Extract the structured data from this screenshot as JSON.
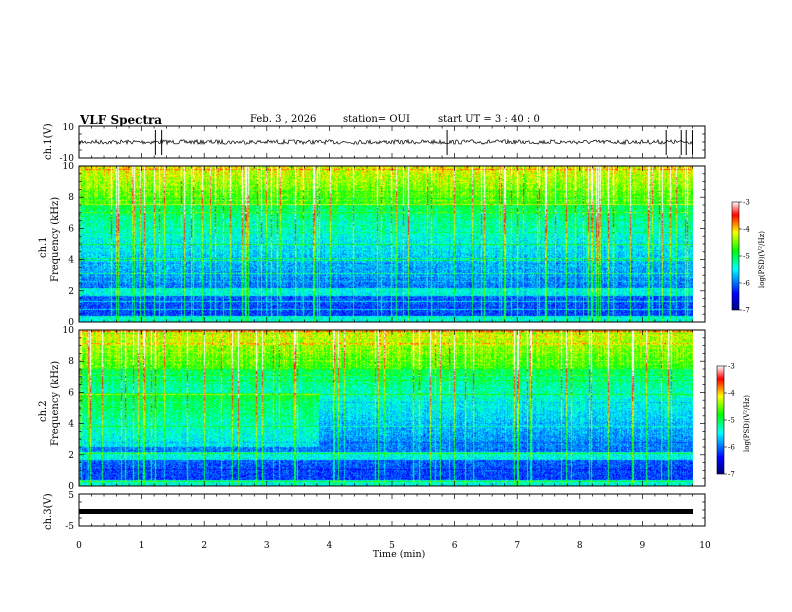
{
  "header": {
    "title": "VLF Spectra",
    "date": "Feb. 3  , 2026",
    "station": "station= OUI",
    "start_time": "start  UT  =   3  : 40 : 0"
  },
  "panels": {
    "ch1_waveform": {
      "ylabel": "ch.1(V)",
      "ticks": [
        "10",
        "-10"
      ]
    },
    "ch1_spectrogram": {
      "ylabel_line1": "ch.1",
      "ylabel_line2": "Frequency  (kHz)"
    },
    "ch2_spectrogram": {
      "ylabel_line1": "ch.2",
      "ylabel_line2": "Frequency  (kHz)"
    },
    "ch3_waveform": {
      "ylabel": "ch.3(V)",
      "ticks": [
        "5",
        "-5"
      ]
    }
  },
  "colorbar": {
    "label": "log(PSD)(V²/Hz)",
    "ticks": [
      "-3",
      "-4",
      "-5",
      "-6",
      "-7"
    ],
    "colors": [
      "#000080",
      "#0000ff",
      "#00ffff",
      "#00ff00",
      "#ffff00",
      "#ff0000",
      "#ffffff"
    ]
  },
  "chart_data": [
    {
      "type": "line",
      "title": "ch.1 waveform",
      "ylabel": "ch.1(V)",
      "xlim": [
        0,
        10
      ],
      "ylim": [
        -10,
        10
      ],
      "baseline": 0,
      "spikes_min": [
        1.22,
        1.32,
        5.88,
        9.38,
        9.62,
        9.7,
        9.8
      ]
    },
    {
      "type": "heatmap",
      "title": "ch.1 spectrogram",
      "ylabel": "Frequency (kHz)",
      "xlim": [
        0,
        10
      ],
      "ylim": [
        0,
        10
      ],
      "zlim": [
        -7,
        -3
      ],
      "x_ticks": [
        "0",
        "1",
        "2",
        "3",
        "4",
        "5",
        "6",
        "7",
        "8",
        "9",
        "10"
      ],
      "y_ticks": [
        "0",
        "2",
        "4",
        "6",
        "8",
        "10"
      ]
    },
    {
      "type": "heatmap",
      "title": "ch.2 spectrogram",
      "ylabel": "Frequency (kHz)",
      "xlim": [
        0,
        10
      ],
      "ylim": [
        0,
        10
      ],
      "zlim": [
        -7,
        -3
      ],
      "x_ticks": [
        "0",
        "1",
        "2",
        "3",
        "4",
        "5",
        "6",
        "7",
        "8",
        "9",
        "10"
      ],
      "y_ticks": [
        "0",
        "2",
        "4",
        "6",
        "8",
        "10"
      ]
    },
    {
      "type": "line",
      "title": "ch.3 waveform",
      "ylabel": "ch.3(V)",
      "xlabel": "Time  (min)",
      "xlim": [
        0,
        10
      ],
      "ylim": [
        -5,
        5
      ],
      "baseline": 0,
      "x_ticks": [
        "0",
        "1",
        "2",
        "3",
        "4",
        "5",
        "6",
        "7",
        "8",
        "9",
        "10"
      ]
    }
  ]
}
